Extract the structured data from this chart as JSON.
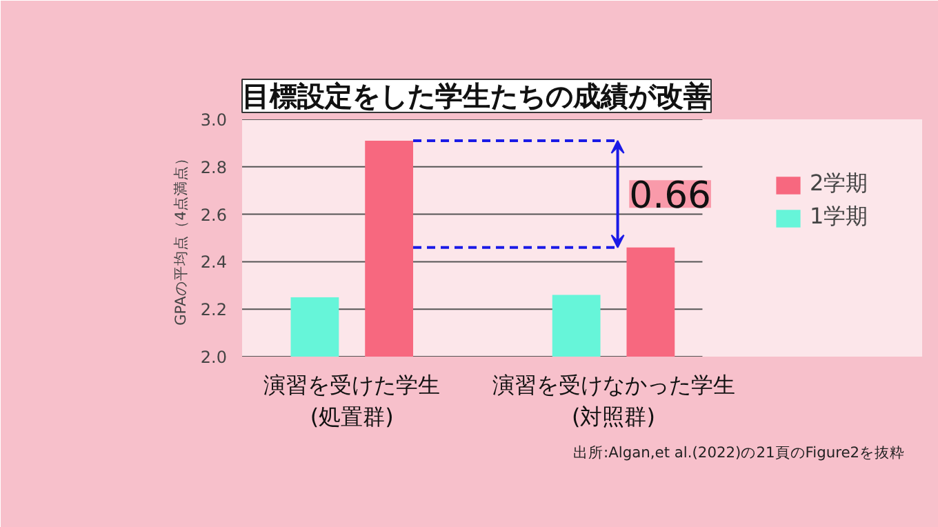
{
  "chart_data": {
    "type": "bar",
    "title": "目標設定をした学生たちの成績が改善",
    "ylabel": "GPAの平均点（4点満点）",
    "categories": [
      "演習を受けた学生\n(処置群)",
      "演習を受けなかった学生\n(対照群)"
    ],
    "series": [
      {
        "name": "1学期",
        "color": "#66f5d9",
        "values": [
          2.25,
          2.26
        ]
      },
      {
        "name": "2学期",
        "color": "#f7687f",
        "values": [
          2.91,
          2.46
        ]
      }
    ],
    "ylim": [
      2.0,
      3.0
    ],
    "yticks": [
      {
        "value": 2.0,
        "label": "2.0"
      },
      {
        "value": 2.2,
        "label": "2.2"
      },
      {
        "value": 2.4,
        "label": "2.4"
      },
      {
        "value": 2.6,
        "label": "2.6"
      },
      {
        "value": 2.8,
        "label": "2.8"
      },
      {
        "value": 3.0,
        "label": "3.0"
      }
    ],
    "grid": "y",
    "legend": "right",
    "ref_lines": [
      {
        "axis": "y",
        "value": 2.91,
        "color": "#1a1ae6",
        "line_style": "dashed"
      },
      {
        "axis": "y",
        "value": 2.46,
        "color": "#1a1ae6",
        "line_style": "dashed"
      }
    ],
    "annotations": [
      "0.66",
      "出所:Algan,et al.(2022)の21頁のFigure2を抜粋"
    ]
  }
}
